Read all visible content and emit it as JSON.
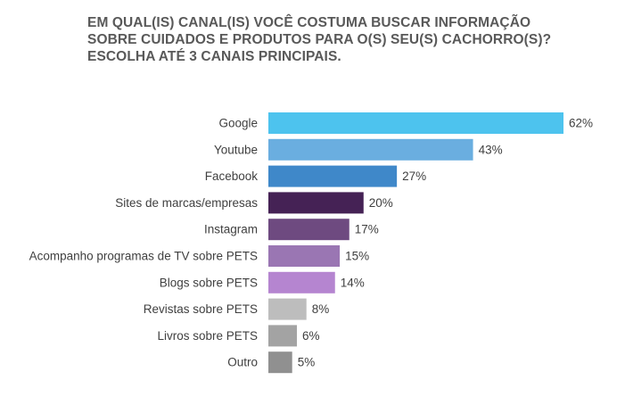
{
  "title_lines": [
    "EM QUAL(IS) CANAL(IS) VOCÊ COSTUMA BUSCAR INFORMAÇÃO",
    "SOBRE CUIDADOS E PRODUTOS PARA O(S) SEU(S) CACHORRO(S)?",
    "ESCOLHA ATÉ 3 CANAIS PRINCIPAIS."
  ],
  "chart_data": {
    "type": "bar",
    "orientation": "horizontal",
    "title": "EM QUAL(IS) CANAL(IS) VOCÊ COSTUMA BUSCAR INFORMAÇÃO SOBRE CUIDADOS E PRODUTOS PARA O(S) SEU(S) CACHORRO(S)? ESCOLHA ATÉ 3 CANAIS PRINCIPAIS.",
    "categories": [
      "Google",
      "Youtube",
      "Facebook",
      "Sites de marcas/empresas",
      "Instagram",
      "Acompanho programas de TV sobre PETS",
      "Blogs sobre PETS",
      "Revistas sobre PETS",
      "Livros sobre PETS",
      "Outro"
    ],
    "values": [
      62,
      43,
      27,
      20,
      17,
      15,
      14,
      8,
      6,
      5
    ],
    "value_labels": [
      "62%",
      "43%",
      "27%",
      "20%",
      "17%",
      "15%",
      "14%",
      "8%",
      "6%",
      "5%"
    ],
    "unit": "%",
    "colors": [
      "#4DC3EE",
      "#6AAEE0",
      "#3F88C9",
      "#452255",
      "#6E4A80",
      "#9A76B3",
      "#B585D0",
      "#BDBDBD",
      "#A3A3A3",
      "#909090"
    ],
    "xlim": [
      0,
      62
    ],
    "grid": false,
    "legend": "none"
  }
}
